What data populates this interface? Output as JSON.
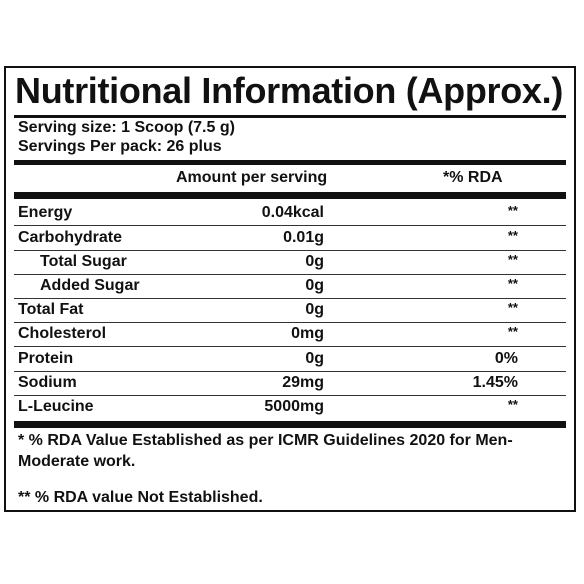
{
  "title": "Nutritional Information (Approx.)",
  "serving_size": "Serving size: 1 Scoop  (7.5 g)",
  "servings_per_pack": "Servings Per pack: 26 plus",
  "header": {
    "amount": "Amount per serving",
    "rda": "*% RDA"
  },
  "rows": [
    {
      "name": "Energy",
      "amount": "0.04kcal",
      "rda": "**"
    },
    {
      "name": "Carbohydrate",
      "amount": "0.01g",
      "rda": "**"
    },
    {
      "name": "Total Sugar",
      "amount": "0g",
      "rda": "**"
    },
    {
      "name": "Added Sugar",
      "amount": "0g",
      "rda": "**"
    },
    {
      "name": "Total Fat",
      "amount": "0g",
      "rda": "**"
    },
    {
      "name": "Cholesterol",
      "amount": "0mg",
      "rda": "**"
    },
    {
      "name": "Protein",
      "amount": "0g",
      "rda": "0%"
    },
    {
      "name": "Sodium",
      "amount": "29mg",
      "rda": "1.45%"
    },
    {
      "name": "L-Leucine",
      "amount": "5000mg",
      "rda": "**"
    }
  ],
  "footnote_1": "* % RDA Value Established as per ICMR Guidelines 2020 for Men-Moderate work.",
  "footnote_2": "** % RDA value Not Established."
}
